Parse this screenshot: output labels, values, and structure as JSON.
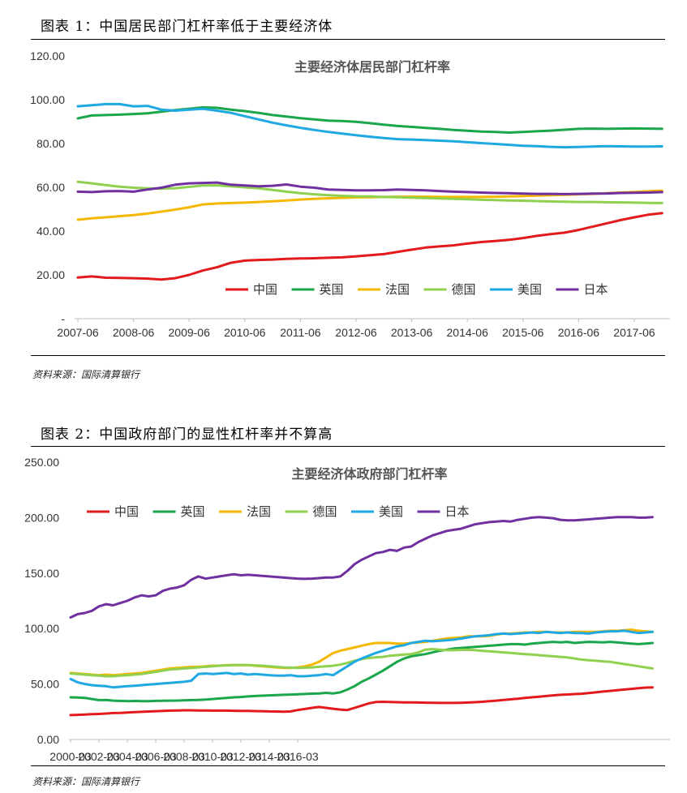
{
  "figure1": {
    "title": "图表 1：中国居民部门杠杆率低于主要经济体",
    "source": "资料来源：国际清算银行"
  },
  "figure2": {
    "title": "图表 2：中国政府部门的显性杠杆率并不算高",
    "source": "资料来源：国际清算银行"
  },
  "colors": {
    "中国": "#e31a1c",
    "英国": "#1aa64a",
    "法国": "#f5b800",
    "德国": "#8fd14f",
    "美国": "#1fa8e1",
    "日本": "#7030a0"
  },
  "chart_data": [
    {
      "type": "line",
      "title": "主要经济体居民部门杠杆率",
      "xlabel": "",
      "ylabel": "",
      "ylim": [
        0,
        120
      ],
      "ytick_labels": [
        "-",
        "20.00",
        "40.00",
        "60.00",
        "80.00",
        "100.00",
        "120.00"
      ],
      "x_tick_labels": [
        "2007-06",
        "2008-06",
        "2009-06",
        "2010-06",
        "2011-06",
        "2012-06",
        "2013-06",
        "2014-06",
        "2015-06",
        "2016-06",
        "2017-06"
      ],
      "x_start": "2007-06",
      "x_step": "quarterly",
      "legend": {
        "position": "lower-right",
        "entries": [
          "中国",
          "英国",
          "法国",
          "德国",
          "美国",
          "日本"
        ]
      },
      "series": [
        {
          "name": "中国",
          "values": [
            18.8,
            19.3,
            18.7,
            18.6,
            18.5,
            18.3,
            17.9,
            18.5,
            20.0,
            22.0,
            23.5,
            25.5,
            26.5,
            26.8,
            27.0,
            27.3,
            27.5,
            27.6,
            27.8,
            28.0,
            28.5,
            29.0,
            29.5,
            30.5,
            31.5,
            32.5,
            33.0,
            33.5,
            34.3,
            35.0,
            35.5,
            36.0,
            36.8,
            37.8,
            38.6,
            39.3,
            40.5,
            42.0,
            43.5,
            45.0,
            46.3,
            47.5,
            48.2
          ]
        },
        {
          "name": "英国",
          "values": [
            91.5,
            92.8,
            93.0,
            93.2,
            93.5,
            93.8,
            94.5,
            95.3,
            95.9,
            96.5,
            96.3,
            95.5,
            94.8,
            94.0,
            93.0,
            92.3,
            91.6,
            91.0,
            90.5,
            90.3,
            89.9,
            89.3,
            88.6,
            88.0,
            87.6,
            87.1,
            86.7,
            86.2,
            85.8,
            85.5,
            85.3,
            85.0,
            85.3,
            85.6,
            85.9,
            86.3,
            86.7,
            86.8,
            86.7,
            86.8,
            86.9,
            86.8,
            86.7
          ]
        },
        {
          "name": "法国",
          "values": [
            45.2,
            45.8,
            46.3,
            46.8,
            47.3,
            48.0,
            48.9,
            49.8,
            50.9,
            52.2,
            52.6,
            52.8,
            53.0,
            53.3,
            53.6,
            54.0,
            54.4,
            54.7,
            55.0,
            55.2,
            55.4,
            55.5,
            55.6,
            55.7,
            55.7,
            55.7,
            55.6,
            55.6,
            55.6,
            55.6,
            55.7,
            55.8,
            56.0,
            56.2,
            56.4,
            56.6,
            56.8,
            57.0,
            57.3,
            57.6,
            57.9,
            58.2,
            58.5
          ]
        },
        {
          "name": "德国",
          "values": [
            62.5,
            61.8,
            61.0,
            60.3,
            59.8,
            59.5,
            59.4,
            59.6,
            60.2,
            60.8,
            60.9,
            60.5,
            60.0,
            59.5,
            58.8,
            58.0,
            57.3,
            56.8,
            56.4,
            56.1,
            55.9,
            55.8,
            55.6,
            55.5,
            55.3,
            55.1,
            54.9,
            54.7,
            54.5,
            54.3,
            54.2,
            54.0,
            53.9,
            53.7,
            53.5,
            53.4,
            53.3,
            53.3,
            53.2,
            53.1,
            53.0,
            52.9,
            52.8
          ]
        },
        {
          "name": "美国",
          "values": [
            97.0,
            97.5,
            98.0,
            98.0,
            97.0,
            97.2,
            95.5,
            95.0,
            95.5,
            95.8,
            95.0,
            94.0,
            92.5,
            91.0,
            89.5,
            88.3,
            87.2,
            86.2,
            85.3,
            84.5,
            83.8,
            83.1,
            82.5,
            82.0,
            81.8,
            81.6,
            81.3,
            81.0,
            80.6,
            80.2,
            79.8,
            79.4,
            79.0,
            78.8,
            78.5,
            78.3,
            78.4,
            78.6,
            78.8,
            78.7,
            78.6,
            78.6,
            78.7
          ]
        },
        {
          "name": "日本",
          "values": [
            58.0,
            57.8,
            58.2,
            58.3,
            58.0,
            59.0,
            59.8,
            61.2,
            61.8,
            62.0,
            62.2,
            61.2,
            60.8,
            60.5,
            60.7,
            61.3,
            60.3,
            59.8,
            59.0,
            58.8,
            58.6,
            58.6,
            58.7,
            59.0,
            58.8,
            58.6,
            58.3,
            58.0,
            57.8,
            57.6,
            57.4,
            57.3,
            57.1,
            57.0,
            57.0,
            56.9,
            57.0,
            57.1,
            57.2,
            57.4,
            57.5,
            57.6,
            57.8
          ]
        }
      ]
    },
    {
      "type": "line",
      "title": "主要经济体政府部门杠杆率",
      "xlabel": "",
      "ylabel": "",
      "ylim": [
        0,
        250
      ],
      "ytick_labels": [
        "0.00",
        "50.00",
        "100.00",
        "150.00",
        "200.00",
        "250.00"
      ],
      "x_tick_labels": [
        "2000-03",
        "2002-03",
        "2004-03",
        "2006-03",
        "2008-03",
        "2010-03",
        "2012-03",
        "2014-03",
        "2016-03"
      ],
      "x_start": "2000-03",
      "x_step": "quarterly",
      "legend": {
        "position": "top-left",
        "entries": [
          "中国",
          "英国",
          "法国",
          "德国",
          "美国",
          "日本"
        ]
      },
      "series": [
        {
          "name": "中国",
          "values": [
            22.0,
            22.2,
            22.5,
            22.8,
            23.0,
            23.4,
            23.8,
            24.0,
            24.3,
            24.6,
            24.9,
            25.2,
            25.5,
            25.8,
            26.0,
            26.2,
            26.3,
            26.3,
            26.2,
            26.1,
            26.0,
            26.0,
            26.0,
            25.9,
            25.8,
            25.7,
            25.6,
            25.5,
            25.3,
            25.2,
            25.0,
            25.3,
            26.5,
            27.5,
            28.5,
            29.3,
            28.5,
            27.7,
            27.0,
            26.5,
            28.5,
            30.5,
            32.5,
            33.8,
            34.0,
            33.8,
            33.6,
            33.5,
            33.4,
            33.3,
            33.2,
            33.1,
            33.0,
            33.0,
            33.0,
            33.1,
            33.3,
            33.6,
            34.0,
            34.5,
            35.0,
            35.6,
            36.2,
            36.8,
            37.4,
            38.0,
            38.6,
            39.2,
            39.8,
            40.3,
            40.6,
            40.9,
            41.2,
            41.8,
            42.5,
            43.2,
            43.8,
            44.4,
            45.0,
            45.6,
            46.2,
            46.8,
            47.0
          ]
        },
        {
          "name": "英国",
          "values": [
            38.0,
            37.8,
            37.5,
            36.5,
            35.5,
            35.6,
            35.0,
            34.8,
            34.6,
            34.7,
            34.5,
            34.6,
            34.8,
            34.9,
            35.0,
            35.1,
            35.3,
            35.5,
            35.6,
            36.0,
            36.5,
            37.0,
            37.5,
            38.0,
            38.3,
            38.8,
            39.2,
            39.5,
            39.8,
            40.0,
            40.3,
            40.5,
            40.8,
            41.0,
            41.3,
            41.5,
            42.0,
            41.5,
            42.5,
            45.0,
            48.0,
            52.0,
            55.0,
            58.5,
            62.0,
            66.0,
            70.0,
            73.0,
            75.0,
            76.0,
            77.0,
            78.5,
            80.0,
            81.0,
            82.0,
            82.5,
            83.0,
            83.5,
            84.0,
            84.5,
            85.0,
            85.5,
            86.0,
            86.0,
            85.5,
            86.5,
            87.0,
            87.5,
            88.0,
            87.5,
            88.0,
            87.0,
            87.5,
            88.0,
            87.8,
            87.5,
            88.0,
            87.5,
            87.0,
            86.5,
            86.0,
            86.5,
            87.0
          ]
        },
        {
          "name": "法国",
          "values": [
            60.0,
            59.5,
            59.0,
            58.5,
            58.0,
            58.5,
            58.0,
            58.5,
            59.0,
            59.5,
            60.0,
            61.0,
            62.0,
            63.0,
            64.0,
            64.5,
            65.0,
            65.5,
            65.5,
            66.0,
            66.5,
            66.5,
            67.0,
            67.0,
            67.0,
            67.0,
            66.5,
            66.0,
            65.5,
            65.0,
            64.5,
            64.5,
            65.0,
            66.0,
            67.5,
            70.0,
            74.0,
            78.0,
            80.0,
            81.5,
            83.0,
            84.5,
            86.0,
            87.0,
            87.0,
            87.0,
            86.5,
            86.5,
            87.0,
            87.5,
            88.0,
            89.0,
            90.0,
            91.0,
            91.5,
            92.0,
            93.0,
            93.0,
            93.0,
            93.5,
            94.5,
            95.5,
            95.5,
            96.0,
            96.5,
            96.5,
            97.0,
            97.0,
            96.5,
            96.5,
            96.5,
            97.0,
            97.0,
            97.0,
            97.0,
            97.5,
            98.0,
            98.0,
            98.5,
            99.0,
            98.0,
            97.5,
            97.0
          ]
        },
        {
          "name": "德国",
          "values": [
            59.5,
            59.0,
            58.5,
            58.0,
            57.5,
            57.0,
            57.0,
            57.5,
            58.0,
            58.5,
            59.0,
            60.0,
            61.0,
            62.0,
            63.0,
            63.5,
            64.0,
            64.5,
            65.0,
            65.5,
            66.0,
            66.5,
            66.8,
            67.0,
            67.0,
            67.0,
            66.8,
            66.5,
            66.0,
            65.5,
            65.0,
            64.8,
            64.5,
            64.8,
            65.0,
            65.5,
            66.0,
            66.5,
            67.5,
            69.0,
            71.0,
            72.5,
            73.5,
            74.0,
            74.5,
            75.5,
            76.0,
            76.5,
            77.0,
            78.5,
            81.0,
            81.5,
            81.0,
            80.5,
            80.5,
            80.8,
            81.0,
            80.5,
            80.0,
            79.5,
            79.0,
            78.5,
            78.0,
            77.5,
            77.0,
            76.5,
            76.0,
            75.5,
            75.0,
            74.5,
            74.0,
            73.0,
            72.0,
            71.5,
            71.0,
            70.5,
            70.0,
            69.0,
            68.0,
            67.0,
            66.0,
            65.0,
            64.0
          ]
        },
        {
          "name": "美国",
          "values": [
            54.5,
            51.5,
            50.0,
            49.0,
            48.5,
            48.0,
            47.0,
            47.5,
            48.0,
            48.5,
            49.0,
            49.5,
            50.0,
            50.5,
            51.0,
            51.5,
            52.0,
            53.0,
            59.0,
            59.5,
            59.0,
            59.5,
            60.0,
            59.0,
            59.5,
            58.5,
            59.0,
            58.5,
            58.0,
            57.5,
            57.5,
            58.0,
            57.0,
            57.0,
            57.5,
            58.0,
            59.0,
            58.0,
            62.0,
            66.0,
            70.0,
            73.0,
            75.5,
            78.0,
            80.0,
            82.0,
            84.0,
            85.0,
            87.0,
            88.0,
            89.0,
            88.5,
            89.0,
            89.5,
            90.0,
            91.0,
            92.0,
            93.0,
            93.5,
            94.0,
            95.0,
            95.5,
            95.0,
            95.5,
            96.0,
            96.5,
            96.0,
            97.0,
            96.5,
            96.0,
            96.5,
            96.0,
            96.0,
            95.5,
            96.5,
            97.0,
            97.5,
            97.5,
            98.0,
            97.0,
            96.0,
            96.5,
            97.0
          ]
        },
        {
          "name": "日本",
          "values": [
            110.0,
            113.0,
            114.0,
            116.0,
            120.0,
            122.0,
            121.0,
            123.0,
            125.0,
            128.0,
            130.0,
            129.0,
            130.0,
            134.0,
            136.0,
            137.0,
            139.0,
            144.0,
            147.0,
            145.0,
            146.0,
            147.0,
            148.0,
            149.0,
            148.0,
            148.5,
            148.0,
            147.5,
            147.0,
            146.5,
            146.0,
            145.5,
            145.0,
            144.8,
            145.0,
            145.5,
            146.0,
            146.0,
            147.0,
            152.0,
            158.0,
            162.0,
            165.0,
            168.0,
            169.0,
            171.0,
            170.0,
            173.0,
            174.0,
            178.0,
            181.0,
            184.0,
            186.0,
            188.0,
            189.0,
            190.0,
            192.0,
            194.0,
            195.0,
            196.0,
            196.5,
            197.0,
            196.5,
            198.0,
            199.0,
            200.0,
            200.5,
            200.0,
            199.5,
            198.0,
            197.5,
            197.5,
            198.0,
            198.5,
            199.0,
            199.5,
            200.0,
            200.5,
            200.5,
            200.5,
            200.0,
            200.0,
            200.5
          ]
        }
      ]
    }
  ]
}
